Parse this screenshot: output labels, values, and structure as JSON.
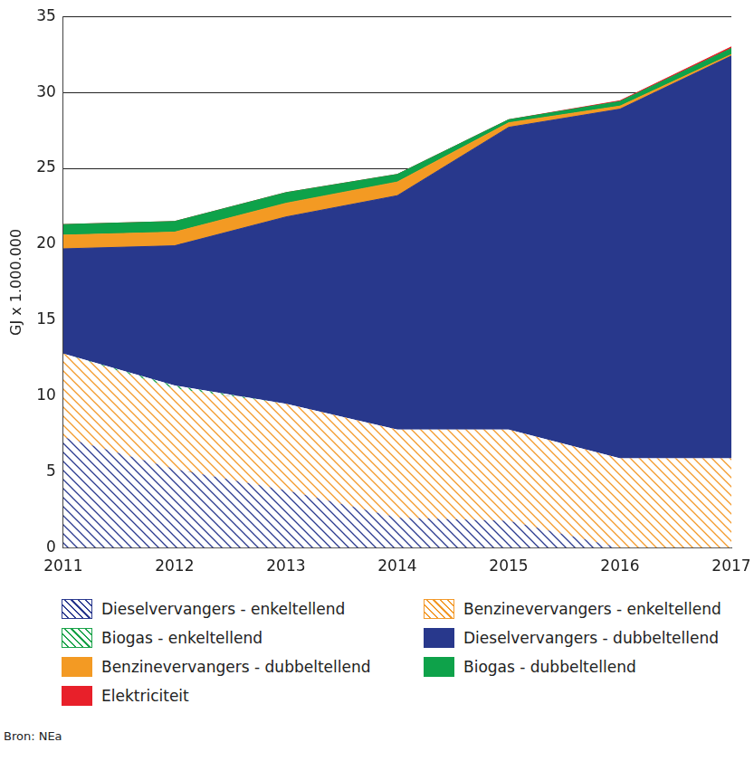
{
  "chart_data": {
    "type": "area",
    "stacked": true,
    "grid": true,
    "legend": "bottom",
    "y_label": "GJ x 1.000.000",
    "source": "Bron: NEa",
    "categories": [
      "2011",
      "2012",
      "2013",
      "2014",
      "2015",
      "2016",
      "2017"
    ],
    "ylim": [
      0,
      35
    ],
    "yticks": [
      0,
      5,
      10,
      15,
      20,
      25,
      30,
      35
    ],
    "series": [
      {
        "name": "Dieselvervangers - enkeltellend",
        "color": "#2b3a8f",
        "line_style": "hatched",
        "values": [
          7.3,
          5.2,
          3.8,
          2.0,
          1.8,
          0,
          0
        ]
      },
      {
        "name": "Benzinevervangers - enkeltellend",
        "color": "#f39a2b",
        "line_style": "hatched",
        "values": [
          5.5,
          5.3,
          5.7,
          5.8,
          6.0,
          5.9,
          5.9
        ]
      },
      {
        "name": "Biogas - enkeltellend",
        "color": "#1aa34a",
        "line_style": "hatched",
        "values": [
          0,
          0.2,
          0,
          0,
          0,
          0,
          0
        ]
      },
      {
        "name": "Dieselvervangers - dubbeltellend",
        "color": "#28388c",
        "values": [
          6.9,
          9.2,
          12.3,
          15.4,
          19.9,
          23.0,
          26.5
        ]
      },
      {
        "name": "Benzinevervangers - dubbeltellend",
        "color": "#f39a23",
        "values": [
          0.9,
          0.9,
          0.9,
          0.9,
          0.3,
          0.2,
          0.1
        ]
      },
      {
        "name": "Biogas - dubbeltellend",
        "color": "#0ea24a",
        "values": [
          0.7,
          0.7,
          0.7,
          0.5,
          0.2,
          0.3,
          0.4
        ]
      },
      {
        "name": "Elektriciteit",
        "color": "#e8202a",
        "values": [
          0,
          0,
          0,
          0,
          0,
          0.05,
          0.1
        ]
      }
    ]
  }
}
